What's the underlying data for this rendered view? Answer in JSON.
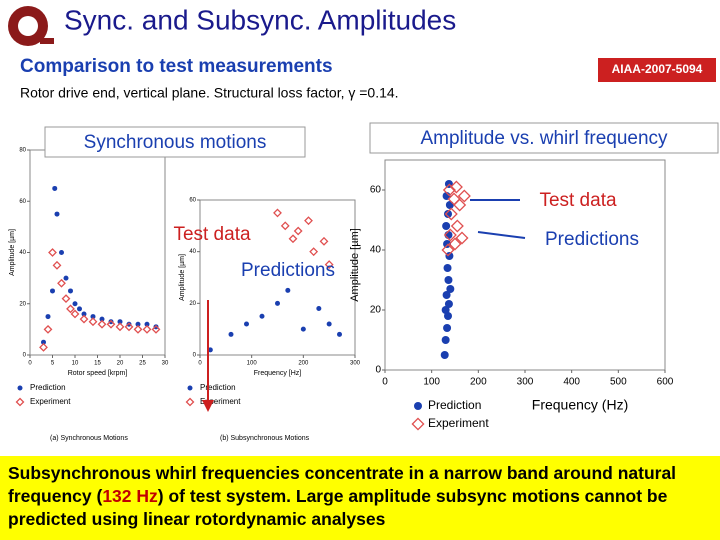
{
  "header": {
    "title": "Sync. and Subsync. Amplitudes",
    "subtitle": "Comparison to test measurements",
    "tag": "AIAA-2007-5094",
    "note": "Rotor drive end, vertical plane. Structural loss factor, γ =0.14."
  },
  "callouts": {
    "left_box": "Synchronous motions",
    "right_box": "Amplitude vs. whirl frequency",
    "left_test": "Test data",
    "left_pred": "Predictions",
    "right_test": "Test data",
    "right_pred": "Predictions"
  },
  "chart_data": [
    {
      "type": "scatter",
      "caption": "(a) Synchronous Motions",
      "x_label": "Rotor speed [krpm]",
      "y_label": "Amplitude [µm]",
      "xlim": [
        0,
        30
      ],
      "ylim": [
        0,
        80
      ],
      "xticks": [
        0,
        5,
        10,
        15,
        20,
        25,
        30
      ],
      "yticks": [
        0,
        20,
        40,
        60,
        80
      ],
      "series": [
        {
          "name": "Prediction",
          "color": "#1a3fb0",
          "marker": "circle",
          "x": [
            3,
            4,
            5,
            5.5,
            6,
            7,
            8,
            9,
            10,
            11,
            12,
            14,
            16,
            18,
            20,
            22,
            24,
            26,
            28
          ],
          "values": [
            5,
            15,
            25,
            65,
            55,
            40,
            30,
            25,
            20,
            18,
            16,
            15,
            14,
            13,
            13,
            12,
            12,
            12,
            11
          ]
        },
        {
          "name": "Experiment",
          "color": "#e05050",
          "marker": "diamond",
          "x": [
            3,
            4,
            5,
            6,
            7,
            8,
            9,
            10,
            12,
            14,
            16,
            18,
            20,
            22,
            24,
            26,
            28
          ],
          "values": [
            3,
            10,
            40,
            35,
            28,
            22,
            18,
            16,
            14,
            13,
            12,
            12,
            11,
            11,
            10,
            10,
            10
          ]
        }
      ]
    },
    {
      "type": "scatter",
      "caption": "(b) Subsynchronous Motions",
      "x_label": "Frequency [Hz]",
      "y_label": "Amplitude [µm]",
      "xlim": [
        0,
        300
      ],
      "ylim": [
        0,
        60
      ],
      "xticks": [
        0,
        100,
        200,
        300
      ],
      "yticks": [
        0,
        20,
        40,
        60
      ],
      "series": [
        {
          "name": "Prediction",
          "color": "#1a3fb0",
          "marker": "circle",
          "x": [
            20,
            60,
            90,
            120,
            150,
            170,
            200,
            230,
            250,
            270
          ],
          "values": [
            2,
            8,
            12,
            15,
            20,
            25,
            10,
            18,
            12,
            8
          ]
        },
        {
          "name": "Experiment",
          "color": "#e05050",
          "marker": "diamond",
          "x": [
            150,
            165,
            180,
            190,
            210,
            220,
            240,
            250
          ],
          "values": [
            55,
            50,
            45,
            48,
            52,
            40,
            44,
            35
          ]
        }
      ]
    },
    {
      "type": "scatter",
      "x_label": "Frequency (Hz)",
      "y_label": "Amplitude [µm]",
      "xlim": [
        0,
        600
      ],
      "ylim": [
        0,
        70
      ],
      "xticks": [
        0,
        100,
        200,
        300,
        400,
        500,
        600
      ],
      "yticks": [
        0,
        20,
        40,
        60
      ],
      "series": [
        {
          "name": "Prediction",
          "color": "#1a3fb0",
          "marker": "circle",
          "x": [
            128,
            130,
            133,
            135,
            130,
            137,
            132,
            140,
            136,
            134,
            138,
            133,
            136,
            131,
            135,
            139,
            132,
            137
          ],
          "values": [
            5,
            10,
            14,
            18,
            20,
            22,
            25,
            27,
            30,
            34,
            38,
            42,
            45,
            48,
            52,
            55,
            58,
            62
          ]
        },
        {
          "name": "Experiment",
          "color": "#e05050",
          "marker": "diamond",
          "x": [
            135,
            150,
            165,
            140,
            155,
            142,
            160,
            148,
            138,
            170,
            153
          ],
          "values": [
            40,
            42,
            44,
            45,
            48,
            52,
            55,
            57,
            60,
            58,
            61
          ]
        }
      ]
    }
  ],
  "footer": {
    "before": "Subsynchronous whirl frequencies concentrate in a narrow band around natural frequency (",
    "highlight": "132 Hz",
    "after": ") of test system. Large amplitude subsync motions cannot be predicted using linear rotordynamic analyses"
  }
}
